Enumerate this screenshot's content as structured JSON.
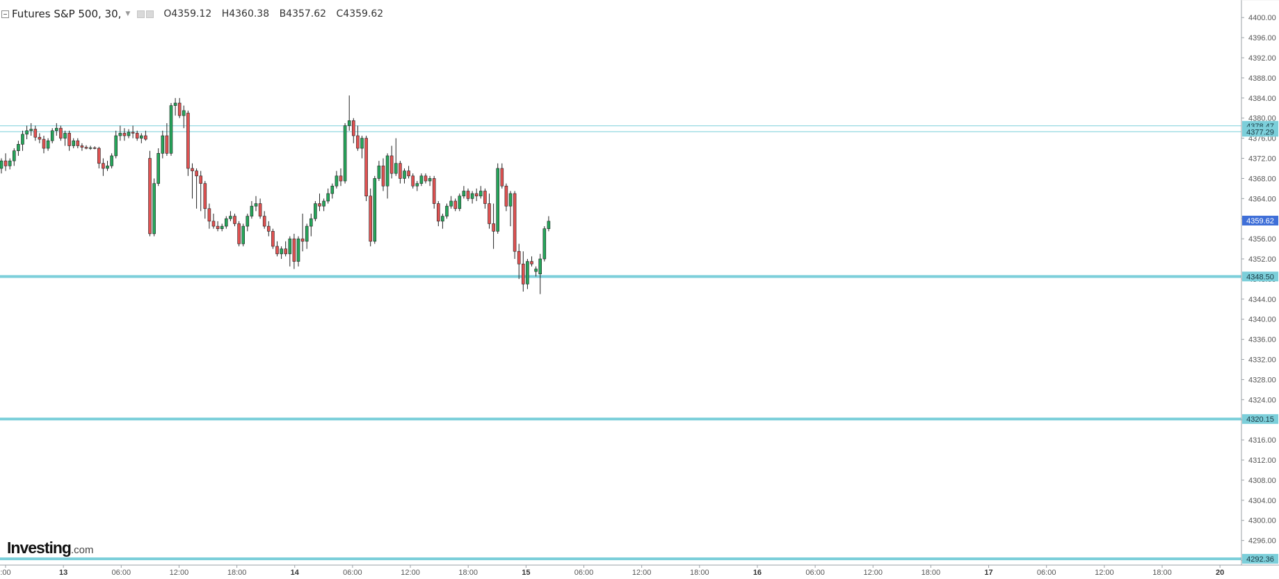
{
  "header": {
    "title": "Futures S&P 500, 30,",
    "open": "O4359.12",
    "high": "H4360.38",
    "low": "B4357.62",
    "close": "C4359.62"
  },
  "logo": {
    "main": "Investing",
    "domain": ".com"
  },
  "colors": {
    "up": "#26a65b",
    "down": "#e05252",
    "level_line": "#7ccfda",
    "price_tag": "#3f6fd8",
    "axis": "#9aa0a6"
  },
  "chart_data": {
    "type": "candlestick",
    "symbol": "Futures S&P 500",
    "interval": "30",
    "y_axis": {
      "min": 4290,
      "max": 4402,
      "ticks": [
        "4400.00",
        "4396.00",
        "4392.00",
        "4388.00",
        "4384.00",
        "4380.00",
        "4376.00",
        "4372.00",
        "4368.00",
        "4364.00",
        "4360.00",
        "4356.00",
        "4352.00",
        "4348.00",
        "4344.00",
        "4340.00",
        "4336.00",
        "4332.00",
        "4328.00",
        "4324.00",
        "4320.00",
        "4316.00",
        "4312.00",
        "4308.00",
        "4304.00",
        "4300.00",
        "4296.00",
        "4292.00"
      ]
    },
    "x_axis": {
      "labels": [
        ":00",
        "13",
        "06:00",
        "12:00",
        "18:00",
        "14",
        "06:00",
        "12:00",
        "18:00",
        "15",
        "06:00",
        "12:00",
        "18:00",
        "16",
        "06:00",
        "12:00",
        "18:00",
        "17",
        "06:00",
        "12:00",
        "18:00",
        "20"
      ]
    },
    "horizontal_lines": [
      {
        "value": 4378.47,
        "label": "4378.47",
        "style": "thin"
      },
      {
        "value": 4377.29,
        "label": "4377.29",
        "style": "thin"
      },
      {
        "value": 4348.5,
        "label": "4348.50",
        "style": "thick"
      },
      {
        "value": 4320.15,
        "label": "4320.15",
        "style": "thick"
      },
      {
        "value": 4292.36,
        "label": "4292.36",
        "style": "thick"
      }
    ],
    "current_price": {
      "value": 4359.62,
      "label": "4359.62"
    },
    "candles": [
      {
        "o": 4370.0,
        "h": 4372.0,
        "l": 4369.0,
        "c": 4371.5
      },
      {
        "o": 4371.5,
        "h": 4373.0,
        "l": 4369.5,
        "c": 4370.5
      },
      {
        "o": 4370.5,
        "h": 4372.0,
        "l": 4369.8,
        "c": 4371.5
      },
      {
        "o": 4371.5,
        "h": 4374.0,
        "l": 4370.5,
        "c": 4373.5
      },
      {
        "o": 4373.5,
        "h": 4375.5,
        "l": 4372.5,
        "c": 4374.8
      },
      {
        "o": 4374.8,
        "h": 4377.5,
        "l": 4373.5,
        "c": 4376.8
      },
      {
        "o": 4376.8,
        "h": 4378.5,
        "l": 4375.8,
        "c": 4377.5
      },
      {
        "o": 4377.5,
        "h": 4379.0,
        "l": 4376.5,
        "c": 4377.8
      },
      {
        "o": 4377.8,
        "h": 4378.5,
        "l": 4375.5,
        "c": 4376.2
      },
      {
        "o": 4376.2,
        "h": 4377.0,
        "l": 4375.0,
        "c": 4375.8
      },
      {
        "o": 4375.8,
        "h": 4376.5,
        "l": 4373.0,
        "c": 4374.0
      },
      {
        "o": 4374.0,
        "h": 4376.0,
        "l": 4373.5,
        "c": 4375.5
      },
      {
        "o": 4375.5,
        "h": 4378.0,
        "l": 4375.0,
        "c": 4377.5
      },
      {
        "o": 4377.5,
        "h": 4379.0,
        "l": 4376.5,
        "c": 4378.0
      },
      {
        "o": 4378.0,
        "h": 4378.5,
        "l": 4375.5,
        "c": 4376.0
      },
      {
        "o": 4376.0,
        "h": 4377.5,
        "l": 4374.5,
        "c": 4377.0
      },
      {
        "o": 4377.0,
        "h": 4377.5,
        "l": 4373.5,
        "c": 4374.5
      },
      {
        "o": 4374.5,
        "h": 4376.0,
        "l": 4374.0,
        "c": 4375.5
      },
      {
        "o": 4375.5,
        "h": 4376.0,
        "l": 4374.0,
        "c": 4374.5
      },
      {
        "o": 4374.5,
        "h": 4375.0,
        "l": 4373.5,
        "c": 4374.2
      },
      {
        "o": 4374.2,
        "h": 4374.6,
        "l": 4373.8,
        "c": 4374.0
      },
      {
        "o": 4374.0,
        "h": 4374.5,
        "l": 4373.7,
        "c": 4374.1
      },
      {
        "o": 4374.1,
        "h": 4374.4,
        "l": 4373.8,
        "c": 4374.0
      },
      {
        "o": 4374.0,
        "h": 4374.3,
        "l": 4370.0,
        "c": 4371.0
      },
      {
        "o": 4371.0,
        "h": 4372.0,
        "l": 4368.5,
        "c": 4370.0
      },
      {
        "o": 4370.0,
        "h": 4371.5,
        "l": 4369.5,
        "c": 4370.5
      },
      {
        "o": 4370.5,
        "h": 4373.0,
        "l": 4370.0,
        "c": 4372.5
      },
      {
        "o": 4372.5,
        "h": 4377.5,
        "l": 4372.0,
        "c": 4376.5
      },
      {
        "o": 4376.5,
        "h": 4378.5,
        "l": 4375.5,
        "c": 4377.0
      },
      {
        "o": 4377.0,
        "h": 4378.0,
        "l": 4375.5,
        "c": 4376.5
      },
      {
        "o": 4376.5,
        "h": 4377.8,
        "l": 4376.0,
        "c": 4377.2
      },
      {
        "o": 4377.2,
        "h": 4378.5,
        "l": 4376.0,
        "c": 4377.0
      },
      {
        "o": 4377.0,
        "h": 4377.5,
        "l": 4375.5,
        "c": 4376.0
      },
      {
        "o": 4376.0,
        "h": 4377.0,
        "l": 4375.0,
        "c": 4376.5
      },
      {
        "o": 4376.5,
        "h": 4377.5,
        "l": 4375.5,
        "c": 4375.8
      },
      {
        "o": 4372.0,
        "h": 4373.5,
        "l": 4356.5,
        "c": 4357.0
      },
      {
        "o": 4357.0,
        "h": 4368.0,
        "l": 4356.5,
        "c": 4367.0
      },
      {
        "o": 4367.0,
        "h": 4374.0,
        "l": 4366.5,
        "c": 4373.0
      },
      {
        "o": 4373.0,
        "h": 4377.5,
        "l": 4372.0,
        "c": 4376.5
      },
      {
        "o": 4376.5,
        "h": 4379.0,
        "l": 4372.5,
        "c": 4373.0
      },
      {
        "o": 4373.0,
        "h": 4383.0,
        "l": 4372.5,
        "c": 4382.5
      },
      {
        "o": 4382.5,
        "h": 4384.0,
        "l": 4380.5,
        "c": 4383.0
      },
      {
        "o": 4383.0,
        "h": 4384.0,
        "l": 4380.0,
        "c": 4380.5
      },
      {
        "o": 4380.5,
        "h": 4382.5,
        "l": 4378.0,
        "c": 4381.5
      },
      {
        "o": 4381.0,
        "h": 4381.5,
        "l": 4368.5,
        "c": 4370.0
      },
      {
        "o": 4370.0,
        "h": 4371.0,
        "l": 4364.0,
        "c": 4369.5
      },
      {
        "o": 4369.5,
        "h": 4370.0,
        "l": 4362.0,
        "c": 4368.5
      },
      {
        "o": 4368.5,
        "h": 4369.5,
        "l": 4361.5,
        "c": 4367.0
      },
      {
        "o": 4367.0,
        "h": 4367.5,
        "l": 4360.0,
        "c": 4362.0
      },
      {
        "o": 4362.0,
        "h": 4363.0,
        "l": 4358.0,
        "c": 4359.5
      },
      {
        "o": 4359.5,
        "h": 4361.0,
        "l": 4358.0,
        "c": 4358.5
      },
      {
        "o": 4358.5,
        "h": 4359.5,
        "l": 4357.5,
        "c": 4358.0
      },
      {
        "o": 4358.0,
        "h": 4359.0,
        "l": 4357.5,
        "c": 4358.5
      },
      {
        "o": 4358.5,
        "h": 4360.5,
        "l": 4358.0,
        "c": 4360.0
      },
      {
        "o": 4360.0,
        "h": 4361.5,
        "l": 4359.5,
        "c": 4360.5
      },
      {
        "o": 4360.5,
        "h": 4361.0,
        "l": 4358.5,
        "c": 4359.0
      },
      {
        "o": 4359.0,
        "h": 4359.5,
        "l": 4354.5,
        "c": 4355.0
      },
      {
        "o": 4355.0,
        "h": 4359.0,
        "l": 4354.5,
        "c": 4358.5
      },
      {
        "o": 4358.5,
        "h": 4361.0,
        "l": 4357.5,
        "c": 4360.5
      },
      {
        "o": 4360.5,
        "h": 4363.5,
        "l": 4360.0,
        "c": 4362.5
      },
      {
        "o": 4362.5,
        "h": 4364.5,
        "l": 4361.5,
        "c": 4363.0
      },
      {
        "o": 4363.0,
        "h": 4364.0,
        "l": 4360.0,
        "c": 4360.5
      },
      {
        "o": 4360.5,
        "h": 4361.5,
        "l": 4358.0,
        "c": 4358.5
      },
      {
        "o": 4358.5,
        "h": 4359.5,
        "l": 4356.5,
        "c": 4357.5
      },
      {
        "o": 4357.5,
        "h": 4358.0,
        "l": 4354.0,
        "c": 4354.5
      },
      {
        "o": 4354.5,
        "h": 4355.5,
        "l": 4352.5,
        "c": 4353.0
      },
      {
        "o": 4353.0,
        "h": 4354.5,
        "l": 4352.0,
        "c": 4354.0
      },
      {
        "o": 4354.0,
        "h": 4355.5,
        "l": 4352.5,
        "c": 4353.0
      },
      {
        "o": 4353.0,
        "h": 4356.5,
        "l": 4350.5,
        "c": 4356.0
      },
      {
        "o": 4356.0,
        "h": 4357.0,
        "l": 4350.0,
        "c": 4351.5
      },
      {
        "o": 4351.5,
        "h": 4356.5,
        "l": 4350.5,
        "c": 4356.0
      },
      {
        "o": 4356.0,
        "h": 4361.0,
        "l": 4353.5,
        "c": 4355.5
      },
      {
        "o": 4355.5,
        "h": 4359.0,
        "l": 4354.0,
        "c": 4358.5
      },
      {
        "o": 4358.5,
        "h": 4361.0,
        "l": 4356.5,
        "c": 4360.0
      },
      {
        "o": 4360.0,
        "h": 4363.5,
        "l": 4359.5,
        "c": 4363.0
      },
      {
        "o": 4363.0,
        "h": 4365.0,
        "l": 4361.5,
        "c": 4362.5
      },
      {
        "o": 4362.5,
        "h": 4364.0,
        "l": 4361.5,
        "c": 4363.5
      },
      {
        "o": 4363.5,
        "h": 4366.0,
        "l": 4363.0,
        "c": 4365.0
      },
      {
        "o": 4365.0,
        "h": 4367.0,
        "l": 4364.0,
        "c": 4366.5
      },
      {
        "o": 4366.5,
        "h": 4369.5,
        "l": 4366.0,
        "c": 4368.5
      },
      {
        "o": 4368.5,
        "h": 4370.0,
        "l": 4366.5,
        "c": 4367.5
      },
      {
        "o": 4367.5,
        "h": 4379.0,
        "l": 4367.0,
        "c": 4378.5
      },
      {
        "o": 4378.5,
        "h": 4384.5,
        "l": 4377.5,
        "c": 4379.5
      },
      {
        "o": 4379.5,
        "h": 4380.0,
        "l": 4375.0,
        "c": 4376.5
      },
      {
        "o": 4376.5,
        "h": 4378.5,
        "l": 4373.5,
        "c": 4374.0
      },
      {
        "o": 4374.0,
        "h": 4376.5,
        "l": 4372.0,
        "c": 4376.0
      },
      {
        "o": 4376.0,
        "h": 4376.5,
        "l": 4363.5,
        "c": 4364.5
      },
      {
        "o": 4364.5,
        "h": 4366.0,
        "l": 4354.5,
        "c": 4355.5
      },
      {
        "o": 4355.5,
        "h": 4368.5,
        "l": 4355.0,
        "c": 4368.0
      },
      {
        "o": 4368.0,
        "h": 4371.5,
        "l": 4367.5,
        "c": 4370.5
      },
      {
        "o": 4370.5,
        "h": 4372.0,
        "l": 4365.5,
        "c": 4366.5
      },
      {
        "o": 4366.5,
        "h": 4373.0,
        "l": 4364.0,
        "c": 4372.5
      },
      {
        "o": 4372.5,
        "h": 4374.5,
        "l": 4368.0,
        "c": 4369.0
      },
      {
        "o": 4369.0,
        "h": 4376.0,
        "l": 4368.5,
        "c": 4371.0
      },
      {
        "o": 4371.0,
        "h": 4371.5,
        "l": 4367.0,
        "c": 4368.0
      },
      {
        "o": 4368.0,
        "h": 4370.0,
        "l": 4367.0,
        "c": 4369.5
      },
      {
        "o": 4369.5,
        "h": 4370.5,
        "l": 4368.0,
        "c": 4368.5
      },
      {
        "o": 4368.5,
        "h": 4369.0,
        "l": 4366.0,
        "c": 4366.5
      },
      {
        "o": 4366.5,
        "h": 4367.5,
        "l": 4365.5,
        "c": 4367.0
      },
      {
        "o": 4367.0,
        "h": 4369.0,
        "l": 4366.5,
        "c": 4368.5
      },
      {
        "o": 4368.5,
        "h": 4369.0,
        "l": 4367.0,
        "c": 4367.5
      },
      {
        "o": 4367.5,
        "h": 4368.5,
        "l": 4366.5,
        "c": 4368.0
      },
      {
        "o": 4368.0,
        "h": 4368.5,
        "l": 4362.0,
        "c": 4363.0
      },
      {
        "o": 4363.0,
        "h": 4363.5,
        "l": 4358.5,
        "c": 4359.5
      },
      {
        "o": 4359.5,
        "h": 4361.0,
        "l": 4358.0,
        "c": 4360.5
      },
      {
        "o": 4360.5,
        "h": 4363.0,
        "l": 4360.0,
        "c": 4362.5
      },
      {
        "o": 4362.5,
        "h": 4364.5,
        "l": 4362.0,
        "c": 4363.5
      },
      {
        "o": 4363.5,
        "h": 4364.0,
        "l": 4361.5,
        "c": 4362.0
      },
      {
        "o": 4362.0,
        "h": 4365.0,
        "l": 4361.5,
        "c": 4364.5
      },
      {
        "o": 4364.5,
        "h": 4366.5,
        "l": 4364.0,
        "c": 4365.5
      },
      {
        "o": 4365.5,
        "h": 4366.0,
        "l": 4363.5,
        "c": 4364.0
      },
      {
        "o": 4364.0,
        "h": 4365.5,
        "l": 4363.0,
        "c": 4365.0
      },
      {
        "o": 4365.0,
        "h": 4366.0,
        "l": 4363.5,
        "c": 4364.5
      },
      {
        "o": 4364.5,
        "h": 4366.5,
        "l": 4364.0,
        "c": 4365.5
      },
      {
        "o": 4365.5,
        "h": 4366.0,
        "l": 4362.0,
        "c": 4363.0
      },
      {
        "o": 4363.0,
        "h": 4365.0,
        "l": 4358.0,
        "c": 4359.0
      },
      {
        "o": 4359.0,
        "h": 4363.0,
        "l": 4354.0,
        "c": 4357.5
      },
      {
        "o": 4357.5,
        "h": 4371.0,
        "l": 4357.0,
        "c": 4370.0
      },
      {
        "o": 4370.0,
        "h": 4371.0,
        "l": 4366.0,
        "c": 4366.5
      },
      {
        "o": 4366.5,
        "h": 4367.0,
        "l": 4361.5,
        "c": 4362.5
      },
      {
        "o": 4362.5,
        "h": 4365.5,
        "l": 4358.5,
        "c": 4365.0
      },
      {
        "o": 4365.0,
        "h": 4365.5,
        "l": 4352.0,
        "c": 4353.5
      },
      {
        "o": 4353.5,
        "h": 4355.0,
        "l": 4348.0,
        "c": 4351.0
      },
      {
        "o": 4351.0,
        "h": 4353.5,
        "l": 4345.5,
        "c": 4347.0
      },
      {
        "o": 4347.0,
        "h": 4352.0,
        "l": 4346.0,
        "c": 4351.5
      },
      {
        "o": 4351.5,
        "h": 4352.5,
        "l": 4350.5,
        "c": 4351.0
      },
      {
        "o": 4349.5,
        "h": 4350.5,
        "l": 4348.5,
        "c": 4350.0
      },
      {
        "o": 4349.0,
        "h": 4353.0,
        "l": 4345.0,
        "c": 4352.0
      },
      {
        "o": 4352.0,
        "h": 4358.5,
        "l": 4351.5,
        "c": 4358.0
      },
      {
        "o": 4358.0,
        "h": 4360.5,
        "l": 4357.5,
        "c": 4359.5
      }
    ]
  }
}
